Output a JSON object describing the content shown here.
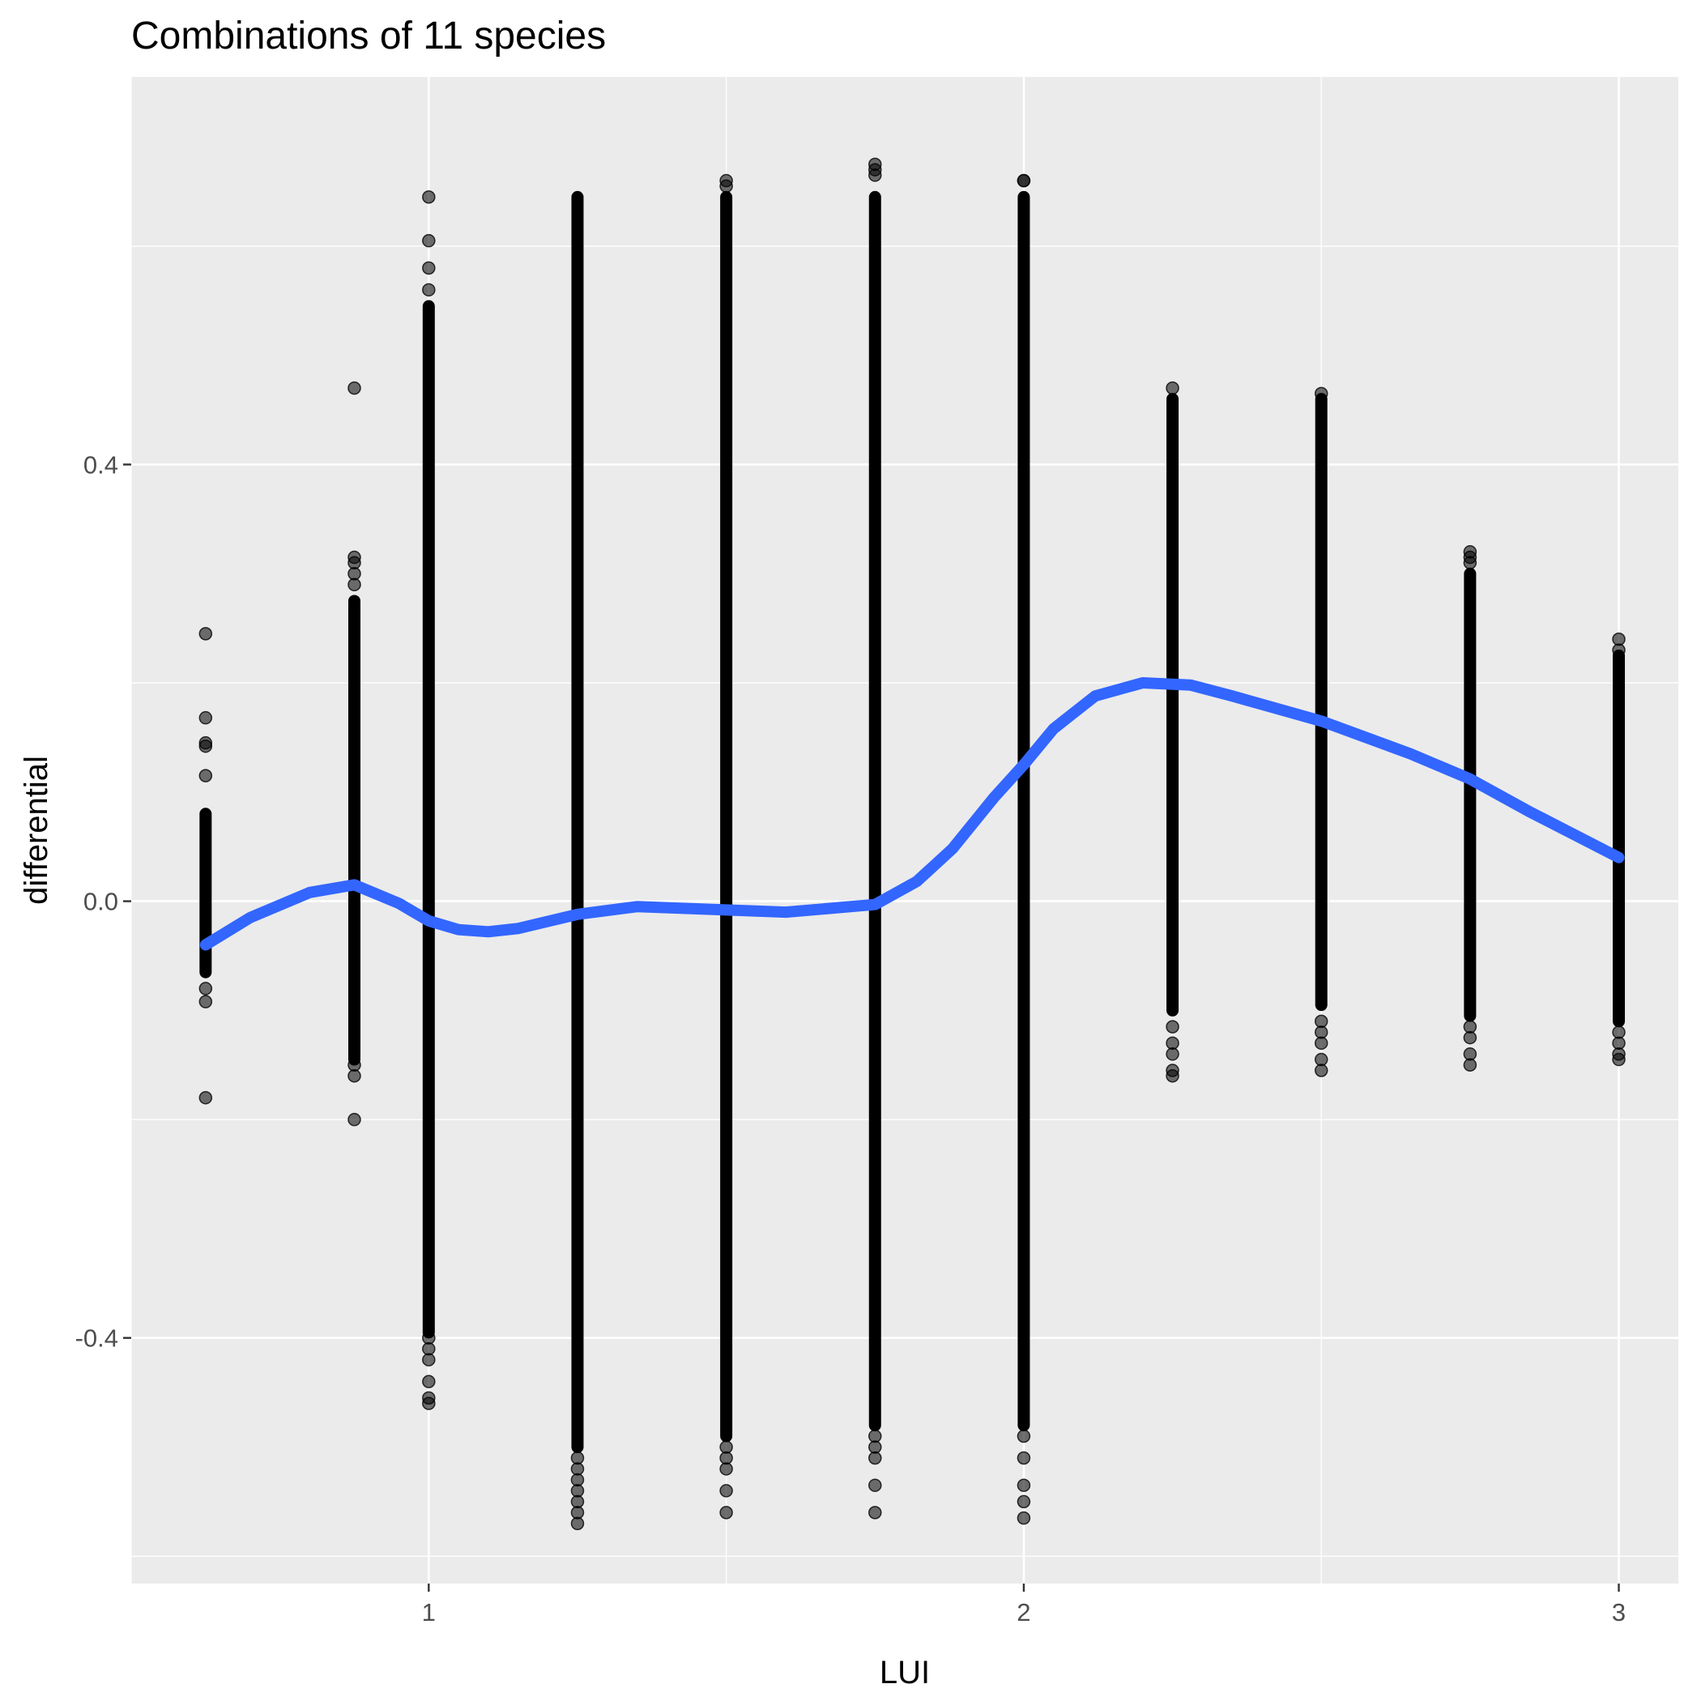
{
  "chart_data": {
    "type": "scatter",
    "title": "Combinations of 11 species",
    "xlabel": "LUI",
    "ylabel": "differential",
    "xlim": [
      0.5,
      3.1
    ],
    "ylim": [
      -0.625,
      0.755
    ],
    "x_ticks": [
      1,
      2,
      3
    ],
    "x_tick_labels": [
      "1",
      "2",
      "3"
    ],
    "y_ticks": [
      -0.4,
      0.0,
      0.4
    ],
    "y_tick_labels": [
      "-0.4",
      "0.0",
      "0.4"
    ],
    "grid": true,
    "legend": "none",
    "colors": {
      "panel": "#EBEBEB",
      "grid": "#FFFFFF",
      "points": "#000000",
      "smooth": "#3366FF"
    },
    "point_groups": [
      {
        "x": 0.625,
        "band_min": -0.065,
        "band_max": 0.08,
        "outliers": [
          0.245,
          0.168,
          0.145,
          0.142,
          0.115,
          -0.08,
          -0.092,
          -0.18
        ]
      },
      {
        "x": 0.875,
        "band_min": -0.145,
        "band_max": 0.275,
        "outliers": [
          0.47,
          0.315,
          0.31,
          0.3,
          0.29,
          -0.15,
          -0.16,
          -0.2
        ]
      },
      {
        "x": 1.0,
        "band_min": -0.395,
        "band_max": 0.545,
        "outliers": [
          0.645,
          0.605,
          0.58,
          0.56,
          -0.4,
          -0.41,
          -0.42,
          -0.44,
          -0.455,
          -0.46
        ]
      },
      {
        "x": 1.25,
        "band_min": -0.5,
        "band_max": 0.645,
        "outliers": [
          -0.51,
          -0.52,
          -0.53,
          -0.54,
          -0.55,
          -0.56,
          -0.57
        ]
      },
      {
        "x": 1.5,
        "band_min": -0.49,
        "band_max": 0.645,
        "outliers": [
          0.655,
          0.66,
          -0.5,
          -0.51,
          -0.52,
          -0.54,
          -0.56
        ]
      },
      {
        "x": 1.75,
        "band_min": -0.48,
        "band_max": 0.645,
        "outliers": [
          0.665,
          0.67,
          0.675,
          -0.49,
          -0.5,
          -0.51,
          -0.535,
          -0.56
        ]
      },
      {
        "x": 2.0,
        "band_min": -0.48,
        "band_max": 0.645,
        "outliers": [
          0.66,
          0.66,
          -0.49,
          -0.51,
          -0.535,
          -0.55,
          -0.565
        ]
      },
      {
        "x": 2.25,
        "band_min": -0.1,
        "band_max": 0.46,
        "outliers": [
          0.47,
          -0.115,
          -0.13,
          -0.14,
          -0.155,
          -0.16
        ]
      },
      {
        "x": 2.5,
        "band_min": -0.095,
        "band_max": 0.46,
        "outliers": [
          0.465,
          -0.11,
          -0.12,
          -0.13,
          -0.145,
          -0.155
        ]
      },
      {
        "x": 2.75,
        "band_min": -0.105,
        "band_max": 0.3,
        "outliers": [
          0.32,
          0.315,
          0.31,
          -0.115,
          -0.125,
          -0.14,
          -0.15
        ]
      },
      {
        "x": 3.0,
        "band_min": -0.11,
        "band_max": 0.225,
        "outliers": [
          0.24,
          0.23,
          -0.12,
          -0.13,
          -0.14,
          -0.145
        ]
      }
    ],
    "smooth_line": {
      "x": [
        0.625,
        0.7,
        0.8,
        0.875,
        0.95,
        1.0,
        1.05,
        1.1,
        1.15,
        1.25,
        1.35,
        1.5,
        1.6,
        1.75,
        1.82,
        1.88,
        1.95,
        2.0,
        2.05,
        2.12,
        2.2,
        2.28,
        2.35,
        2.5,
        2.65,
        2.75,
        2.85,
        3.0
      ],
      "y": [
        -0.04,
        -0.015,
        0.008,
        0.015,
        -0.002,
        -0.018,
        -0.026,
        -0.028,
        -0.025,
        -0.012,
        -0.005,
        -0.008,
        -0.01,
        -0.003,
        0.018,
        0.048,
        0.095,
        0.125,
        0.158,
        0.188,
        0.2,
        0.198,
        0.188,
        0.165,
        0.135,
        0.112,
        0.082,
        0.04
      ]
    }
  }
}
